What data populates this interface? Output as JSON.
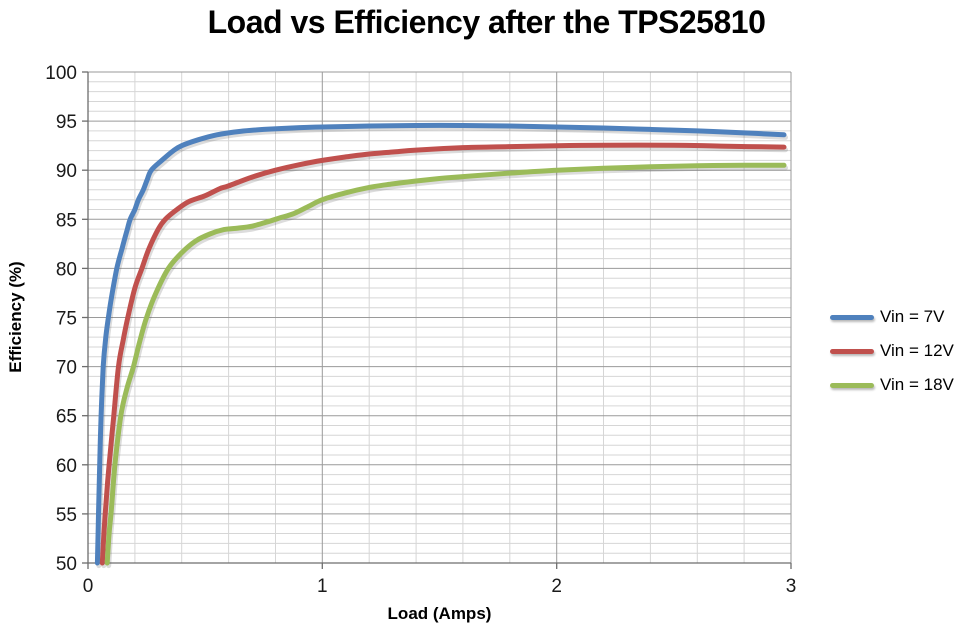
{
  "chart_data": {
    "type": "line",
    "title": "Load vs Efficiency after the TPS25810",
    "xlabel": "Load (Amps)",
    "ylabel": "Efficiency (%)",
    "xlim": [
      0,
      3
    ],
    "ylim": [
      50,
      100
    ],
    "x_major_ticks": [
      0,
      1,
      2,
      3
    ],
    "y_major_ticks": [
      50,
      55,
      60,
      65,
      70,
      75,
      80,
      85,
      90,
      95,
      100
    ],
    "x_minor_step": 0.2,
    "y_minor_step": 1,
    "grid": "major and minor gridlines on both axes",
    "legend_position": "right",
    "colors": {
      "minor_grid": "#D6D6D6",
      "major_grid": "#9A9A9A",
      "axis": "#6D6D6D",
      "title_text": "#000000",
      "tick_text": "#1a1a1a"
    },
    "series": [
      {
        "name": "Vin = 7V",
        "color": "#4F81BD",
        "points": [
          [
            0.04,
            50
          ],
          [
            0.045,
            55
          ],
          [
            0.05,
            60
          ],
          [
            0.056,
            65
          ],
          [
            0.065,
            70
          ],
          [
            0.075,
            72.8
          ],
          [
            0.087,
            75
          ],
          [
            0.1,
            77
          ],
          [
            0.123,
            80
          ],
          [
            0.145,
            82
          ],
          [
            0.168,
            84
          ],
          [
            0.18,
            85
          ],
          [
            0.2,
            86
          ],
          [
            0.215,
            87
          ],
          [
            0.236,
            88
          ],
          [
            0.252,
            89
          ],
          [
            0.27,
            90
          ],
          [
            0.315,
            91
          ],
          [
            0.365,
            92
          ],
          [
            0.4,
            92.5
          ],
          [
            0.47,
            93.1
          ],
          [
            0.55,
            93.6
          ],
          [
            0.65,
            93.95
          ],
          [
            0.75,
            94.15
          ],
          [
            0.87,
            94.3
          ],
          [
            1.0,
            94.4
          ],
          [
            1.2,
            94.5
          ],
          [
            1.4,
            94.55
          ],
          [
            1.6,
            94.55
          ],
          [
            1.8,
            94.5
          ],
          [
            2.0,
            94.4
          ],
          [
            2.2,
            94.3
          ],
          [
            2.4,
            94.15
          ],
          [
            2.6,
            94.0
          ],
          [
            2.8,
            93.8
          ],
          [
            2.97,
            93.6
          ]
        ]
      },
      {
        "name": "Vin = 12V",
        "color": "#C0504D",
        "points": [
          [
            0.061,
            50
          ],
          [
            0.068,
            53
          ],
          [
            0.078,
            56.5
          ],
          [
            0.09,
            60
          ],
          [
            0.11,
            65
          ],
          [
            0.13,
            70
          ],
          [
            0.15,
            72.7
          ],
          [
            0.17,
            75
          ],
          [
            0.2,
            78
          ],
          [
            0.23,
            80
          ],
          [
            0.26,
            82
          ],
          [
            0.3,
            84
          ],
          [
            0.33,
            85
          ],
          [
            0.38,
            86
          ],
          [
            0.43,
            86.8
          ],
          [
            0.5,
            87.4
          ],
          [
            0.56,
            88.1
          ],
          [
            0.6,
            88.4
          ],
          [
            0.7,
            89.3
          ],
          [
            0.8,
            90.0
          ],
          [
            0.9,
            90.55
          ],
          [
            1.0,
            91.0
          ],
          [
            1.1,
            91.35
          ],
          [
            1.2,
            91.65
          ],
          [
            1.3,
            91.85
          ],
          [
            1.4,
            92.05
          ],
          [
            1.6,
            92.3
          ],
          [
            1.8,
            92.4
          ],
          [
            2.0,
            92.5
          ],
          [
            2.2,
            92.55
          ],
          [
            2.5,
            92.55
          ],
          [
            2.7,
            92.45
          ],
          [
            2.97,
            92.35
          ]
        ]
      },
      {
        "name": "Vin = 18V",
        "color": "#9BBB59",
        "points": [
          [
            0.082,
            50
          ],
          [
            0.09,
            53
          ],
          [
            0.1,
            55.5
          ],
          [
            0.115,
            60
          ],
          [
            0.14,
            65
          ],
          [
            0.165,
            67.7
          ],
          [
            0.194,
            70
          ],
          [
            0.22,
            72.5
          ],
          [
            0.25,
            75
          ],
          [
            0.29,
            77.5
          ],
          [
            0.343,
            80
          ],
          [
            0.4,
            81.6
          ],
          [
            0.46,
            82.8
          ],
          [
            0.52,
            83.5
          ],
          [
            0.58,
            83.95
          ],
          [
            0.64,
            84.1
          ],
          [
            0.7,
            84.3
          ],
          [
            0.76,
            84.7
          ],
          [
            0.82,
            85.15
          ],
          [
            0.88,
            85.6
          ],
          [
            0.94,
            86.3
          ],
          [
            1.0,
            87.0
          ],
          [
            1.1,
            87.7
          ],
          [
            1.2,
            88.25
          ],
          [
            1.3,
            88.6
          ],
          [
            1.4,
            88.9
          ],
          [
            1.5,
            89.15
          ],
          [
            1.6,
            89.35
          ],
          [
            1.8,
            89.7
          ],
          [
            2.0,
            90.0
          ],
          [
            2.2,
            90.2
          ],
          [
            2.4,
            90.35
          ],
          [
            2.6,
            90.45
          ],
          [
            2.8,
            90.5
          ],
          [
            2.97,
            90.5
          ]
        ]
      }
    ]
  }
}
